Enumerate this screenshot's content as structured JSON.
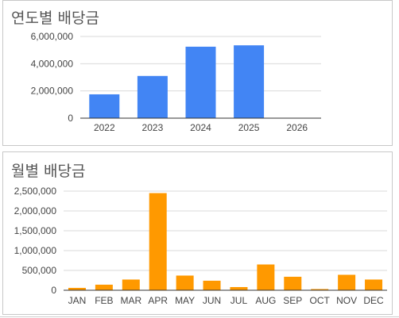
{
  "chart_data": [
    {
      "type": "bar",
      "title": "연도별 배당금",
      "categories": [
        "2022",
        "2023",
        "2024",
        "2025",
        "2026"
      ],
      "values": [
        1750000,
        3100000,
        5250000,
        5350000,
        0
      ],
      "y_ticks": [
        "0",
        "2,000,000",
        "4,000,000",
        "6,000,000"
      ],
      "ylim": [
        0,
        6000000
      ],
      "xlabel": "",
      "ylabel": "",
      "grid": true,
      "color": "#4285f4"
    },
    {
      "type": "bar",
      "title": "월별 배당금",
      "categories": [
        "JAN",
        "FEB",
        "MAR",
        "APR",
        "MAY",
        "JUN",
        "JUL",
        "AUG",
        "SEP",
        "OCT",
        "NOV",
        "DEC"
      ],
      "values": [
        60000,
        140000,
        270000,
        2450000,
        370000,
        240000,
        80000,
        650000,
        340000,
        30000,
        390000,
        270000
      ],
      "y_ticks": [
        "0",
        "500,000",
        "1,000,000",
        "1,500,000",
        "2,000,000",
        "2,500,000"
      ],
      "ylim": [
        0,
        2500000
      ],
      "xlabel": "",
      "ylabel": "",
      "grid": true,
      "color": "#ff9900"
    }
  ]
}
